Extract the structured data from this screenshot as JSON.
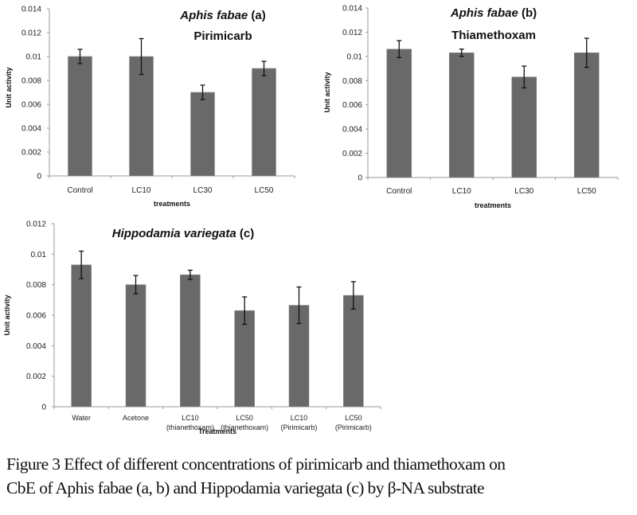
{
  "chart_data": [
    {
      "type": "bar",
      "title_italic": "Aphis fabae",
      "title_suffix": " (a)",
      "subtitle": "Pirimicarb",
      "xlabel": "treatments",
      "ylabel": "Unit activity",
      "categories": [
        "Control",
        "LC10",
        "LC30",
        "LC50"
      ],
      "values": [
        0.01,
        0.01,
        0.007,
        0.009
      ],
      "errors": [
        0.0006,
        0.0015,
        0.0006,
        0.0006
      ],
      "ylim": [
        0,
        0.014
      ],
      "yticks": [
        "0",
        "0.002",
        "0.004",
        "0.006",
        "0.008",
        "0.01",
        "0.012",
        "0.014"
      ],
      "grid": false,
      "bar_color": "#696969"
    },
    {
      "type": "bar",
      "title_italic": "Aphis fabae",
      "title_suffix": " (b)",
      "subtitle": "Thiamethoxam",
      "xlabel": "treatments",
      "ylabel": "Unit activity",
      "categories": [
        "Control",
        "LC10",
        "LC30",
        "LC50"
      ],
      "values": [
        0.0106,
        0.0103,
        0.0083,
        0.0103
      ],
      "errors": [
        0.0007,
        0.0003,
        0.0009,
        0.0012
      ],
      "ylim": [
        0,
        0.014
      ],
      "yticks": [
        "0",
        "0.002",
        "0.004",
        "0.006",
        "0.008",
        "0.01",
        "0.012",
        "0.014"
      ],
      "grid": false,
      "bar_color": "#696969"
    },
    {
      "type": "bar",
      "title_italic": "Hippodamia variegata",
      "title_suffix": "  (c)",
      "subtitle": "",
      "xlabel": "Treatments",
      "ylabel": "Unit activity",
      "categories": [
        [
          "Water"
        ],
        [
          "Acetone"
        ],
        [
          "LC10",
          "(thianethoxam)"
        ],
        [
          "LC50",
          "(thianethoxam)"
        ],
        [
          "LC10",
          "(Pirimicarb)"
        ],
        [
          "LC50",
          "(Pirimicarb)"
        ]
      ],
      "values": [
        0.0093,
        0.008,
        0.00865,
        0.0063,
        0.00665,
        0.0073
      ],
      "errors": [
        0.0009,
        0.0006,
        0.0003,
        0.0009,
        0.0012,
        0.0009
      ],
      "ylim": [
        0,
        0.012
      ],
      "yticks": [
        "0",
        "0.002",
        "0.004",
        "0.006",
        "0.008",
        "0.01",
        "0.012"
      ],
      "grid": false,
      "bar_color": "#696969"
    }
  ],
  "caption": {
    "line1": "Figure 3 Effect of different concentrations of pirimicarb and thiamethoxam on",
    "line2": "CbE of Aphis fabae (a, b) and Hippodamia variegata (c) by β-NA substrate"
  }
}
